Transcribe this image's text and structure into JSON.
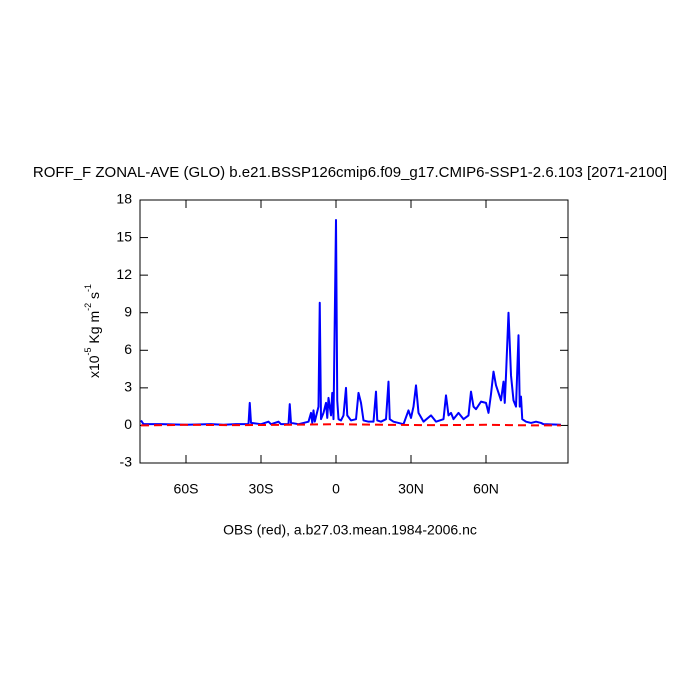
{
  "chart_data": {
    "type": "line",
    "title": "ROFF_F ZONAL-AVE (GLO) b.e21.BSSP126cmip6.f09_g17.CMIP6-SSP1-2.6.103 [2071-2100]",
    "ylabel": [
      "x10",
      "-5",
      " Kg m",
      "-2",
      " s",
      "-1"
    ],
    "xlabel": "OBS (red), a.b27.03.mean.1984-2006.nc",
    "xlim": [
      -78.4,
      92.8
    ],
    "ylim": [
      -3,
      18
    ],
    "xticks": [
      {
        "value": -60,
        "label": "60S"
      },
      {
        "value": -30,
        "label": "30S"
      },
      0,
      {
        "value": 30,
        "label": "30N"
      },
      {
        "value": 60,
        "label": "60N"
      }
    ],
    "yticks": [
      -3,
      0,
      3,
      6,
      9,
      12,
      15,
      18
    ],
    "series": [
      {
        "color": "#0000ff",
        "dash": false,
        "x": [
          -78,
          -77,
          -70,
          -60,
          -50,
          -45,
          -40,
          -35,
          -34.5,
          -34,
          -30,
          -27,
          -26,
          -23,
          -22,
          -19,
          -18.5,
          -18,
          -15,
          -11,
          -10,
          -9.5,
          -9,
          -8.5,
          -7,
          -6.5,
          -6,
          -5,
          -4,
          -3.5,
          -3,
          -2,
          -1.5,
          -1,
          0,
          0.5,
          1,
          2,
          3,
          4,
          4.5,
          6,
          8,
          9,
          10,
          11,
          13,
          15,
          16,
          16.5,
          18,
          20,
          21,
          21.5,
          23,
          25,
          27,
          29,
          30,
          31,
          32,
          33,
          35,
          38,
          40,
          43,
          44,
          45,
          46,
          47,
          49,
          51,
          53,
          54,
          55,
          56,
          58,
          60,
          61,
          62,
          63,
          64,
          65,
          66,
          67,
          67.5,
          68,
          69,
          70,
          71,
          72,
          73,
          73.5,
          74,
          74.5,
          76,
          78,
          80,
          82,
          83,
          90
        ],
        "values": [
          0.4,
          0.1,
          0.1,
          0.05,
          0.1,
          0.05,
          0.1,
          0.1,
          1.8,
          0.2,
          0.1,
          0.3,
          0.1,
          0.3,
          0.1,
          0.1,
          1.7,
          0.2,
          0.1,
          0.3,
          1.0,
          0.2,
          1.2,
          0.3,
          1.5,
          9.8,
          0.5,
          1.0,
          1.8,
          0.6,
          2.2,
          0.8,
          2.6,
          0.5,
          16.4,
          2.0,
          0.5,
          0.4,
          0.8,
          3.0,
          0.8,
          0.4,
          0.5,
          2.6,
          1.8,
          0.4,
          0.3,
          0.3,
          2.7,
          0.4,
          0.3,
          0.5,
          3.5,
          0.5,
          0.3,
          0.2,
          0.1,
          1.2,
          0.6,
          1.5,
          3.2,
          1.0,
          0.3,
          0.8,
          0.3,
          0.5,
          2.4,
          0.8,
          1.0,
          0.5,
          1.0,
          0.5,
          0.8,
          2.7,
          1.5,
          1.3,
          1.9,
          1.8,
          1.0,
          2.5,
          4.3,
          3.2,
          2.6,
          2.0,
          3.5,
          1.8,
          4.0,
          9.0,
          4.0,
          2.0,
          1.5,
          7.2,
          1.5,
          2.3,
          0.5,
          0.3,
          0.2,
          0.3,
          0.2,
          0.1,
          0.05
        ]
      },
      {
        "color": "#ff0000",
        "dash": true,
        "x": [
          -78,
          -60,
          -40,
          -20,
          0,
          20,
          40,
          60,
          80,
          90
        ],
        "values": [
          0,
          0.05,
          0.02,
          0.05,
          0.1,
          0.05,
          0.02,
          0.05,
          0,
          0
        ]
      }
    ]
  }
}
